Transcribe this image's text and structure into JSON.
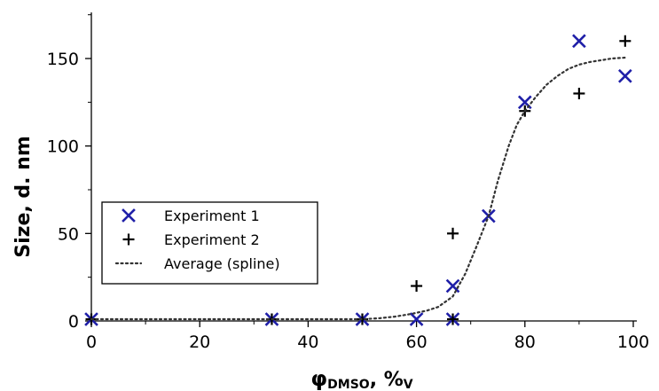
{
  "chart_data": {
    "type": "scatter",
    "xlabel": {
      "main": "φ",
      "subscript": "DMSO",
      "sep": ", ",
      "unit_main": "%",
      "unit_sub": "V"
    },
    "ylabel": "Size, d. nm",
    "xlim": [
      0,
      100
    ],
    "ylim": [
      0,
      175
    ],
    "xticks": [
      0,
      20,
      40,
      60,
      80,
      100
    ],
    "yticks": [
      0,
      50,
      100,
      150
    ],
    "grid": false,
    "legend_position": "center-left",
    "series": [
      {
        "name": "Experiment  1",
        "marker": "x",
        "color": "#1f1fa8",
        "points": [
          {
            "x": 0,
            "y": 1
          },
          {
            "x": 33.3,
            "y": 1
          },
          {
            "x": 50,
            "y": 1
          },
          {
            "x": 60,
            "y": 1
          },
          {
            "x": 66.7,
            "y": 1
          },
          {
            "x": 66.7,
            "y": 20
          },
          {
            "x": 73.3,
            "y": 60
          },
          {
            "x": 80,
            "y": 125
          },
          {
            "x": 90,
            "y": 160
          },
          {
            "x": 98.5,
            "y": 140
          }
        ]
      },
      {
        "name": "Experiment 2",
        "marker": "+",
        "color": "#000000",
        "points": [
          {
            "x": 0,
            "y": 1
          },
          {
            "x": 33.3,
            "y": 1
          },
          {
            "x": 50,
            "y": 1
          },
          {
            "x": 60,
            "y": 20
          },
          {
            "x": 66.7,
            "y": 1
          },
          {
            "x": 66.7,
            "y": 50
          },
          {
            "x": 80,
            "y": 120
          },
          {
            "x": 90,
            "y": 130
          },
          {
            "x": 98.5,
            "y": 160
          }
        ]
      },
      {
        "name": "Average (spline)",
        "style": "dotted",
        "color": "#333333",
        "points": [
          {
            "x": 0,
            "y": 1
          },
          {
            "x": 10,
            "y": 1
          },
          {
            "x": 20,
            "y": 1
          },
          {
            "x": 30,
            "y": 1
          },
          {
            "x": 40,
            "y": 1
          },
          {
            "x": 50,
            "y": 1
          },
          {
            "x": 53,
            "y": 1.5
          },
          {
            "x": 56,
            "y": 2.5
          },
          {
            "x": 59,
            "y": 4
          },
          {
            "x": 62,
            "y": 6
          },
          {
            "x": 64,
            "y": 8
          },
          {
            "x": 66.7,
            "y": 14
          },
          {
            "x": 69,
            "y": 27
          },
          {
            "x": 71,
            "y": 42
          },
          {
            "x": 73.3,
            "y": 60
          },
          {
            "x": 75,
            "y": 80
          },
          {
            "x": 77,
            "y": 100
          },
          {
            "x": 78.5,
            "y": 112
          },
          {
            "x": 80,
            "y": 120
          },
          {
            "x": 82,
            "y": 128
          },
          {
            "x": 84,
            "y": 135
          },
          {
            "x": 86,
            "y": 140
          },
          {
            "x": 88,
            "y": 144
          },
          {
            "x": 90,
            "y": 146.5
          },
          {
            "x": 92,
            "y": 148
          },
          {
            "x": 94,
            "y": 149
          },
          {
            "x": 96,
            "y": 150
          },
          {
            "x": 98.5,
            "y": 150.5
          }
        ]
      }
    ]
  }
}
